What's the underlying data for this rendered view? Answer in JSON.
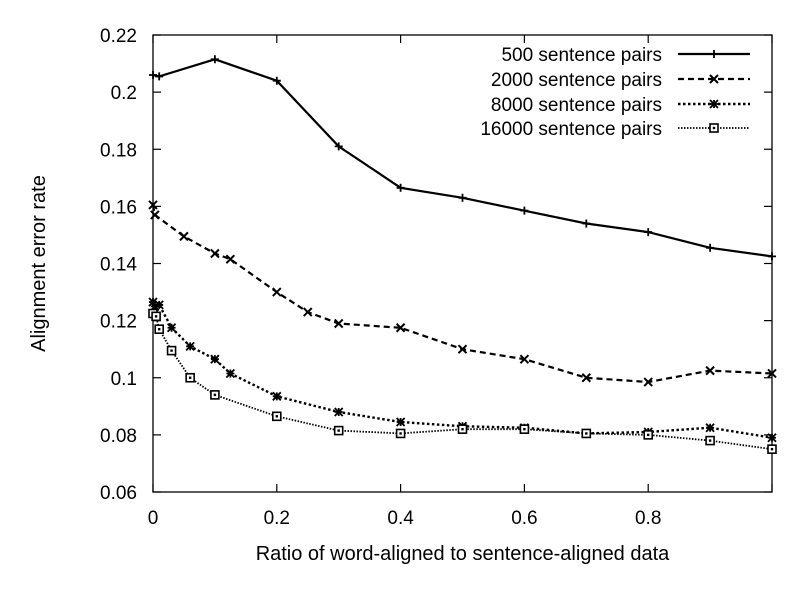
{
  "chart_data": {
    "type": "line",
    "title": "",
    "xlabel": "Ratio of word-aligned to sentence-aligned data",
    "ylabel": "Alignment error rate",
    "xlim": [
      0,
      1
    ],
    "ylim": [
      0.06,
      0.22
    ],
    "xticks": [
      {
        "value": 0,
        "label": "0"
      },
      {
        "value": 0.2,
        "label": "0.2"
      },
      {
        "value": 0.4,
        "label": "0.4"
      },
      {
        "value": 0.6,
        "label": "0.6"
      },
      {
        "value": 0.8,
        "label": "0.8"
      },
      {
        "value": 1,
        "label": ""
      }
    ],
    "yticks": [
      {
        "value": 0.06,
        "label": "0.06"
      },
      {
        "value": 0.08,
        "label": "0.08"
      },
      {
        "value": 0.1,
        "label": "0.1"
      },
      {
        "value": 0.12,
        "label": "0.12"
      },
      {
        "value": 0.14,
        "label": "0.14"
      },
      {
        "value": 0.16,
        "label": "0.16"
      },
      {
        "value": 0.18,
        "label": "0.18"
      },
      {
        "value": 0.2,
        "label": "0.2"
      },
      {
        "value": 0.22,
        "label": "0.22"
      }
    ],
    "grid": false,
    "legend_position": "top-right",
    "series": [
      {
        "name": "500 sentence pairs",
        "line_style": "solid",
        "marker": "plus",
        "x": [
          0,
          0.01,
          0.1,
          0.2,
          0.3,
          0.4,
          0.5,
          0.6,
          0.7,
          0.8,
          0.9,
          1.0
        ],
        "y": [
          0.206,
          0.2055,
          0.2115,
          0.204,
          0.181,
          0.1665,
          0.163,
          0.1585,
          0.154,
          0.151,
          0.1455,
          0.1425
        ]
      },
      {
        "name": "2000 sentence pairs",
        "line_style": "dashed",
        "marker": "cross",
        "x": [
          0,
          0.003,
          0.05,
          0.1,
          0.125,
          0.2,
          0.25,
          0.3,
          0.4,
          0.5,
          0.6,
          0.7,
          0.8,
          0.9,
          1.0
        ],
        "y": [
          0.1605,
          0.157,
          0.1495,
          0.1435,
          0.1415,
          0.13,
          0.123,
          0.119,
          0.1175,
          0.11,
          0.1065,
          0.1,
          0.0985,
          0.1025,
          0.1015
        ]
      },
      {
        "name": "8000 sentence pairs",
        "line_style": "dotted",
        "marker": "star",
        "x": [
          0,
          0.003,
          0.01,
          0.03,
          0.06,
          0.1,
          0.125,
          0.2,
          0.3,
          0.4,
          0.5,
          0.6,
          0.7,
          0.8,
          0.9,
          1.0
        ],
        "y": [
          0.1265,
          0.125,
          0.1255,
          0.1175,
          0.111,
          0.1065,
          0.1015,
          0.0935,
          0.088,
          0.0845,
          0.083,
          0.0825,
          0.0805,
          0.081,
          0.0825,
          0.079
        ]
      },
      {
        "name": "16000 sentence pairs",
        "line_style": "fine-dotted",
        "marker": "square",
        "x": [
          0,
          0.005,
          0.01,
          0.03,
          0.06,
          0.1,
          0.2,
          0.3,
          0.4,
          0.5,
          0.6,
          0.7,
          0.8,
          0.9,
          1.0
        ],
        "y": [
          0.1225,
          0.1215,
          0.117,
          0.1095,
          0.1,
          0.094,
          0.0865,
          0.0815,
          0.0805,
          0.082,
          0.082,
          0.0805,
          0.08,
          0.078,
          0.075
        ]
      }
    ]
  }
}
